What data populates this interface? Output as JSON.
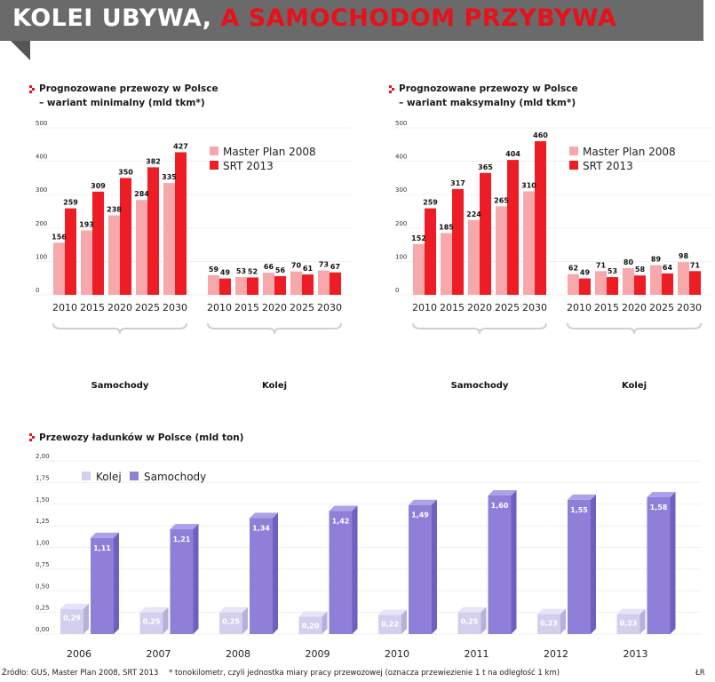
{
  "headline": {
    "part1": "KOLEI UBYWA, ",
    "part2": "A SAMOCHODOM PRZYBYWA"
  },
  "colors": {
    "master_plan": "#f6a8ab",
    "srt": "#ee1c25",
    "kolej": "#d3d0ee",
    "samochody": "#8f7fd9",
    "bullet": "#e8101a"
  },
  "chart_data": [
    {
      "type": "bar",
      "title_line1": "Prognozowane przewozy w Polsce",
      "title_line2": "– wariant minimalny (mld tkm*)",
      "categories": [
        "2010",
        "2015",
        "2020",
        "2025",
        "2030",
        "2010",
        "2015",
        "2020",
        "2025",
        "2030"
      ],
      "groups": [
        "Samochody",
        "Kolej"
      ],
      "ylim": [
        0,
        500
      ],
      "yticks": [
        "500",
        "400",
        "300",
        "200",
        "100",
        "0"
      ],
      "series": [
        {
          "name": "Master Plan 2008",
          "values": [
            156,
            193,
            238,
            284,
            335,
            59,
            53,
            66,
            70,
            73
          ]
        },
        {
          "name": "SRT 2013",
          "values": [
            259,
            309,
            350,
            382,
            427,
            49,
            52,
            56,
            61,
            67
          ]
        }
      ]
    },
    {
      "type": "bar",
      "title_line1": "Prognozowane przewozy w Polsce",
      "title_line2": "– wariant maksymalny (mld tkm*)",
      "categories": [
        "2010",
        "2015",
        "2020",
        "2025",
        "2030",
        "2010",
        "2015",
        "2020",
        "2025",
        "2030"
      ],
      "groups": [
        "Samochody",
        "Kolej"
      ],
      "ylim": [
        0,
        500
      ],
      "yticks": [
        "500",
        "400",
        "300",
        "200",
        "100",
        "0"
      ],
      "series": [
        {
          "name": "Master Plan 2008",
          "values": [
            152,
            185,
            224,
            265,
            310,
            62,
            71,
            80,
            89,
            98
          ]
        },
        {
          "name": "SRT 2013",
          "values": [
            259,
            317,
            365,
            404,
            460,
            49,
            53,
            58,
            64,
            71
          ]
        }
      ]
    },
    {
      "type": "bar",
      "title": "Przewozy ładunków w Polsce (mld ton)",
      "categories": [
        "2006",
        "2007",
        "2008",
        "2009",
        "2010",
        "2011",
        "2012",
        "2013"
      ],
      "ylim": [
        0,
        2
      ],
      "yticks": [
        "2,00",
        "1,75",
        "1,50",
        "1,25",
        "1,00",
        "0,75",
        "0,50",
        "0,25",
        "0,00"
      ],
      "series": [
        {
          "name": "Kolej",
          "values": [
            0.29,
            0.25,
            0.25,
            0.2,
            0.22,
            0.25,
            0.23,
            0.23
          ],
          "labels": [
            "0,29",
            "0,25",
            "0,25",
            "0,20",
            "0,22",
            "0,25",
            "0,23",
            "0,23"
          ]
        },
        {
          "name": "Samochody",
          "values": [
            1.11,
            1.21,
            1.34,
            1.42,
            1.49,
            1.6,
            1.55,
            1.58
          ],
          "labels": [
            "1,11",
            "1,21",
            "1,34",
            "1,42",
            "1,49",
            "1,60",
            "1,55",
            "1,58"
          ]
        }
      ]
    }
  ],
  "footer": {
    "source": "Źródło: GUS, Master Plan 2008, SRT 2013",
    "note": "* tonokilometr, czyli jednostka miary pracy przewozowej (oznacza przewiezienie 1 t na odległość 1 km)",
    "credit": "ŁR"
  }
}
